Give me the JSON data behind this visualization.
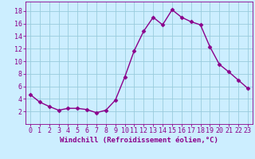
{
  "x": [
    0,
    1,
    2,
    3,
    4,
    5,
    6,
    7,
    8,
    9,
    10,
    11,
    12,
    13,
    14,
    15,
    16,
    17,
    18,
    19,
    20,
    21,
    22,
    23
  ],
  "y": [
    4.7,
    3.5,
    2.8,
    2.2,
    2.5,
    2.5,
    2.3,
    1.8,
    2.2,
    3.8,
    7.5,
    11.7,
    14.8,
    17.0,
    15.8,
    18.2,
    17.0,
    16.3,
    15.8,
    12.3,
    9.5,
    8.3,
    7.0,
    5.7
  ],
  "line_color": "#8b008b",
  "marker": "D",
  "marker_size": 2.5,
  "line_width": 1.0,
  "background_color": "#cceeff",
  "grid_color": "#99ccdd",
  "xlabel": "Windchill (Refroidissement éolien,°C)",
  "ylabel": "",
  "xlim": [
    -0.5,
    23.5
  ],
  "ylim": [
    0,
    19.5
  ],
  "yticks": [
    2,
    4,
    6,
    8,
    10,
    12,
    14,
    16,
    18
  ],
  "xticks": [
    0,
    1,
    2,
    3,
    4,
    5,
    6,
    7,
    8,
    9,
    10,
    11,
    12,
    13,
    14,
    15,
    16,
    17,
    18,
    19,
    20,
    21,
    22,
    23
  ],
  "xlabel_fontsize": 6.5,
  "tick_fontsize": 6.0
}
